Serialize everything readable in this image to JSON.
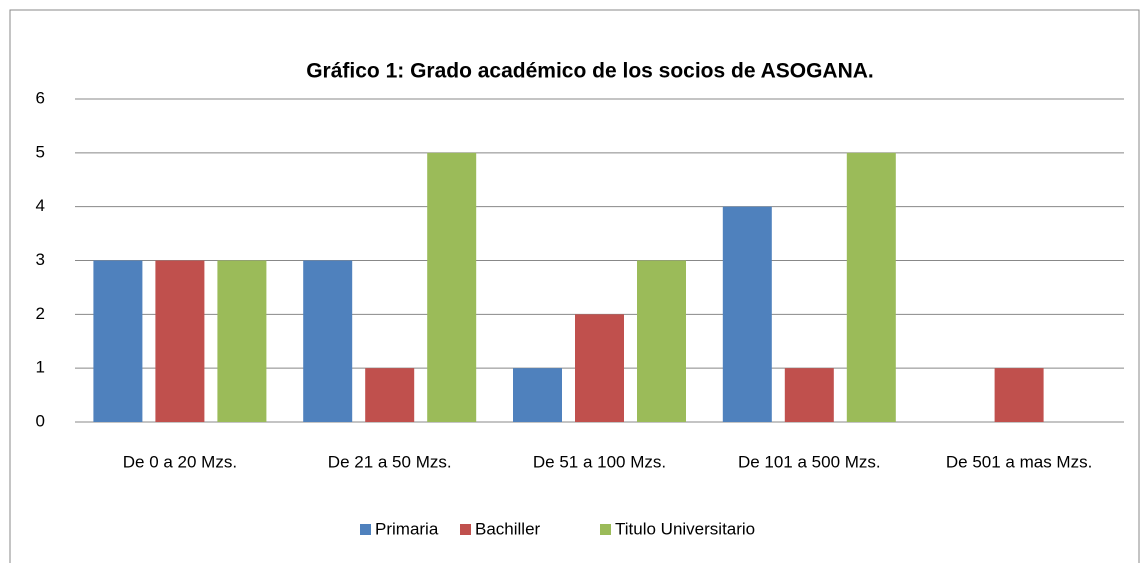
{
  "chart_data": {
    "type": "bar",
    "title": "Gráfico 1: Grado académico de los socios de ASOGANA.",
    "categories": [
      "De 0 a 20 Mzs.",
      "De 21 a 50 Mzs.",
      "De 51 a 100 Mzs.",
      "De 101 a 500 Mzs.",
      "De 501 a mas Mzs."
    ],
    "series": [
      {
        "name": "Primaria",
        "color": "#4f81bd",
        "values": [
          3,
          3,
          1,
          4,
          0
        ]
      },
      {
        "name": "Bachiller",
        "color": "#c0504d",
        "values": [
          3,
          1,
          2,
          1,
          1
        ]
      },
      {
        "name": "Titulo Universitario",
        "color": "#9bbb59",
        "values": [
          3,
          5,
          3,
          5,
          0
        ]
      }
    ],
    "ylim": [
      0,
      6
    ],
    "yticks": [
      0,
      1,
      2,
      3,
      4,
      5,
      6
    ],
    "grid": true,
    "legend": "bottom"
  }
}
